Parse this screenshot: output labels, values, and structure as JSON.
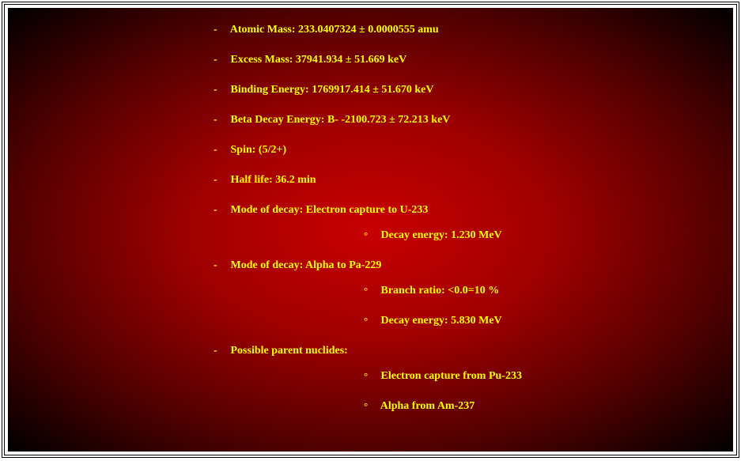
{
  "colors": {
    "text": "#ffff00",
    "bg_center": "#c80000",
    "bg_mid": "#a00000",
    "bg_edge": "#500000",
    "bg_corner": "#000000",
    "frame_border": "#000000",
    "page_bg": "#ffffff"
  },
  "typography": {
    "font_family": "Times New Roman",
    "font_size_pt": 11,
    "font_weight": "bold"
  },
  "bullets": {
    "level1": "-",
    "level2": "°"
  },
  "items": [
    {
      "text": "Atomic Mass: 233.0407324 ± 0.0000555 amu",
      "sub": []
    },
    {
      "text": "Excess Mass: 37941.934 ± 51.669 keV",
      "sub": []
    },
    {
      "text": "Binding Energy: 1769917.414 ± 51.670 keV",
      "sub": []
    },
    {
      "text": "Beta Decay Energy: B- -2100.723 ± 72.213 keV",
      "sub": []
    },
    {
      "text": "Spin: (5/2+)",
      "sub": []
    },
    {
      "text": "Half life: 36.2 min",
      "sub": []
    },
    {
      "text": "Mode of decay: Electron capture to U-233",
      "sub": [
        "Decay energy: 1.230 MeV"
      ]
    },
    {
      "text": "Mode of decay: Alpha to Pa-229",
      "sub": [
        "Branch ratio: <0.0=10 %",
        "Decay energy: 5.830 MeV"
      ]
    },
    {
      "text": "Possible parent nuclides:",
      "sub": [
        "Electron capture from Pu-233",
        "Alpha from Am-237"
      ]
    }
  ]
}
